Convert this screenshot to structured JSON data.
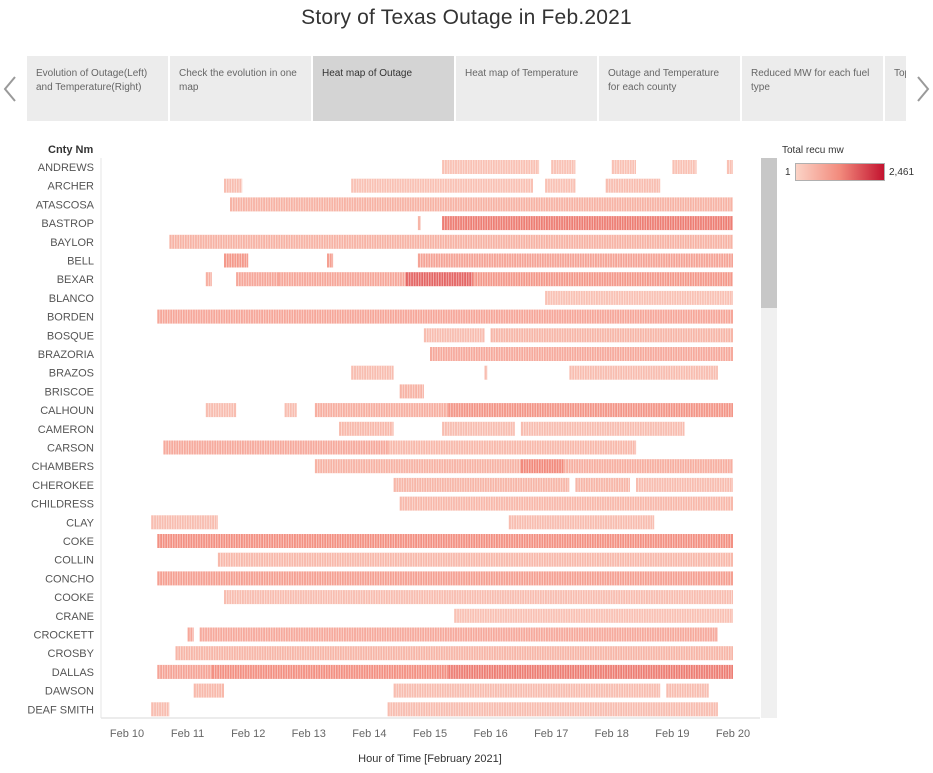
{
  "story": {
    "title": "Story of Texas Outage in Feb.2021",
    "tabs": [
      {
        "label": "Evolution of Outage(Left) and Temperature(Right)",
        "active": false
      },
      {
        "label": "Check the evolution in one map",
        "active": false
      },
      {
        "label": "Heat map of Outage",
        "active": true
      },
      {
        "label": "Heat map of Temperature",
        "active": false
      },
      {
        "label": "Outage and Temperature for each county",
        "active": false
      },
      {
        "label": "Reduced MW for each fuel type",
        "active": false
      },
      {
        "label": "Top ... at e...",
        "active": false
      }
    ]
  },
  "legend": {
    "title": "Total recu mw",
    "min_label": "1",
    "max_label": "2,461",
    "color_low": "#fbd3c6",
    "color_mid": "#f28a7c",
    "color_high": "#c3132f"
  },
  "chart_data": {
    "type": "heatmap",
    "title": "",
    "row_header": "Cnty Nm",
    "xlabel": "Hour of Time [February 2021]",
    "x_ticks": [
      "Feb 10",
      "Feb 11",
      "Feb 12",
      "Feb 13",
      "Feb 14",
      "Feb 15",
      "Feb 16",
      "Feb 17",
      "Feb 18",
      "Feb 19",
      "Feb 20"
    ],
    "x_range_days": [
      10,
      20
    ],
    "value_range": [
      1,
      2461
    ],
    "rows": [
      {
        "name": "ANDREWS",
        "segments": [
          [
            15.2,
            16.8,
            0.12
          ],
          [
            17.0,
            17.4,
            0.12
          ],
          [
            18.0,
            18.4,
            0.12
          ],
          [
            19.0,
            19.4,
            0.12
          ],
          [
            19.9,
            20.0,
            0.12
          ]
        ]
      },
      {
        "name": "ARCHER",
        "segments": [
          [
            11.6,
            11.9,
            0.15
          ],
          [
            13.7,
            16.7,
            0.12
          ],
          [
            16.9,
            17.4,
            0.12
          ],
          [
            17.9,
            18.8,
            0.15
          ]
        ]
      },
      {
        "name": "ATASCOSA",
        "segments": [
          [
            11.7,
            20.0,
            0.22
          ]
        ]
      },
      {
        "name": "BASTROP",
        "segments": [
          [
            14.8,
            14.85,
            0.2
          ],
          [
            15.2,
            20.0,
            0.55
          ]
        ]
      },
      {
        "name": "BAYLOR",
        "segments": [
          [
            10.7,
            20.0,
            0.22
          ]
        ]
      },
      {
        "name": "BELL",
        "segments": [
          [
            11.6,
            12.0,
            0.4
          ],
          [
            13.3,
            13.4,
            0.35
          ],
          [
            14.8,
            20.0,
            0.32
          ]
        ]
      },
      {
        "name": "BEXAR",
        "segments": [
          [
            11.3,
            11.4,
            0.25
          ],
          [
            11.8,
            12.5,
            0.3
          ],
          [
            12.5,
            14.6,
            0.3
          ],
          [
            14.6,
            15.7,
            0.65
          ],
          [
            15.7,
            20.0,
            0.4
          ]
        ]
      },
      {
        "name": "BLANCO",
        "segments": [
          [
            16.9,
            20.0,
            0.12
          ]
        ]
      },
      {
        "name": "BORDEN",
        "segments": [
          [
            10.5,
            20.0,
            0.3
          ]
        ]
      },
      {
        "name": "BOSQUE",
        "segments": [
          [
            14.9,
            15.9,
            0.15
          ],
          [
            16.0,
            20.0,
            0.2
          ]
        ]
      },
      {
        "name": "BRAZORIA",
        "segments": [
          [
            15.0,
            20.0,
            0.28
          ]
        ]
      },
      {
        "name": "BRAZOS",
        "segments": [
          [
            13.7,
            14.4,
            0.15
          ],
          [
            15.9,
            15.95,
            0.15
          ],
          [
            17.3,
            19.75,
            0.15
          ]
        ]
      },
      {
        "name": "BRISCOE",
        "segments": [
          [
            14.5,
            14.9,
            0.22
          ]
        ]
      },
      {
        "name": "CALHOUN",
        "segments": [
          [
            11.3,
            11.8,
            0.15
          ],
          [
            12.6,
            12.8,
            0.15
          ],
          [
            13.1,
            15.3,
            0.25
          ],
          [
            15.3,
            20.0,
            0.42
          ]
        ]
      },
      {
        "name": "CAMERON",
        "segments": [
          [
            13.5,
            14.4,
            0.18
          ],
          [
            15.2,
            16.4,
            0.15
          ],
          [
            16.5,
            19.2,
            0.15
          ]
        ]
      },
      {
        "name": "CARSON",
        "segments": [
          [
            10.6,
            14.3,
            0.28
          ],
          [
            14.3,
            18.4,
            0.18
          ]
        ]
      },
      {
        "name": "CHAMBERS",
        "segments": [
          [
            13.1,
            16.5,
            0.22
          ],
          [
            16.5,
            17.2,
            0.5
          ],
          [
            17.2,
            20.0,
            0.25
          ]
        ]
      },
      {
        "name": "CHEROKEE",
        "segments": [
          [
            14.4,
            17.3,
            0.2
          ],
          [
            17.4,
            18.3,
            0.2
          ],
          [
            18.4,
            20.0,
            0.15
          ]
        ]
      },
      {
        "name": "CHILDRESS",
        "segments": [
          [
            14.5,
            20.0,
            0.18
          ]
        ]
      },
      {
        "name": "CLAY",
        "segments": [
          [
            10.4,
            11.5,
            0.15
          ],
          [
            16.3,
            18.7,
            0.15
          ]
        ]
      },
      {
        "name": "COKE",
        "segments": [
          [
            10.5,
            20.0,
            0.45
          ]
        ]
      },
      {
        "name": "COLLIN",
        "segments": [
          [
            11.5,
            20.0,
            0.18
          ]
        ]
      },
      {
        "name": "CONCHO",
        "segments": [
          [
            10.5,
            20.0,
            0.35
          ]
        ]
      },
      {
        "name": "COOKE",
        "segments": [
          [
            11.6,
            20.0,
            0.15
          ]
        ]
      },
      {
        "name": "CRANE",
        "segments": [
          [
            15.4,
            20.0,
            0.12
          ]
        ]
      },
      {
        "name": "CROCKETT",
        "segments": [
          [
            11.0,
            11.1,
            0.3
          ],
          [
            11.2,
            19.75,
            0.28
          ]
        ]
      },
      {
        "name": "CROSBY",
        "segments": [
          [
            10.8,
            20.0,
            0.2
          ]
        ]
      },
      {
        "name": "DALLAS",
        "segments": [
          [
            10.5,
            11.4,
            0.32
          ],
          [
            11.4,
            15.3,
            0.45
          ],
          [
            15.3,
            20.0,
            0.55
          ]
        ]
      },
      {
        "name": "DAWSON",
        "segments": [
          [
            11.1,
            11.6,
            0.18
          ],
          [
            14.4,
            18.8,
            0.15
          ],
          [
            18.9,
            19.6,
            0.15
          ]
        ]
      },
      {
        "name": "DEAF SMITH",
        "segments": [
          [
            10.4,
            10.7,
            0.15
          ],
          [
            14.3,
            19.75,
            0.15
          ]
        ]
      }
    ]
  }
}
